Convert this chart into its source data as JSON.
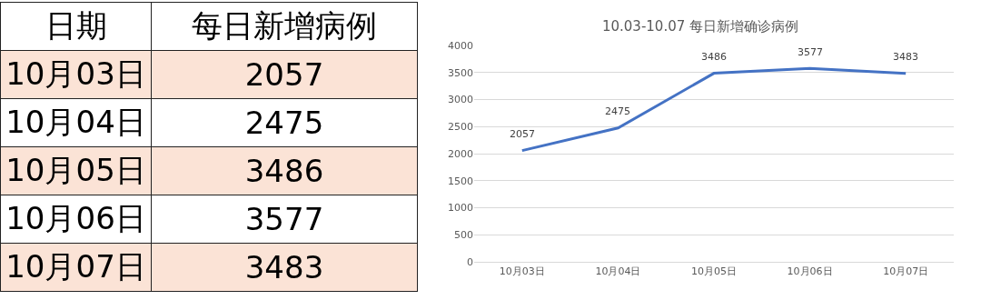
{
  "chart_data": [
    {
      "type": "other",
      "xlabel": "日期",
      "ylabel": "每日新增病例",
      "categories": [
        "10月03日",
        "10月04日",
        "10月05日",
        "10月06日",
        "10月07日"
      ],
      "values": [
        2057,
        2475,
        3486,
        3577,
        3483
      ],
      "data_labels": true
    },
    {
      "type": "line",
      "title": "10.03-10.07 每日新增确诊病例",
      "categories": [
        "10月03日",
        "10月04日",
        "10月05日",
        "10月06日",
        "10月07日"
      ],
      "series": [
        {
          "color": "#4472c4",
          "values": [
            2057,
            2475,
            3486,
            3577,
            3483
          ]
        }
      ],
      "ylim": [
        0,
        4000
      ],
      "yticks": [
        0,
        500,
        1000,
        1500,
        2000,
        2500,
        3000,
        3500,
        4000
      ],
      "grid": "y",
      "marker": "none",
      "line_style": "solid",
      "data_labels": true
    }
  ]
}
